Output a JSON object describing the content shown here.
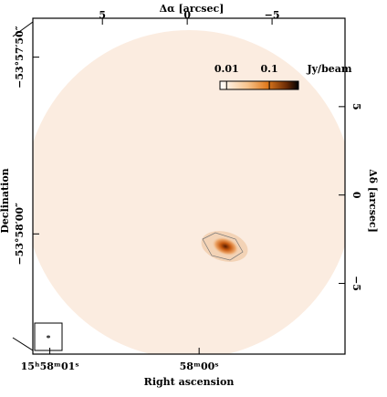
{
  "chart_data": {
    "type": "image",
    "top_axis_label": "Δα [arcsec]",
    "right_axis_label": "Δδ [arcsec]",
    "bottom_axis_label": "Right ascension",
    "left_axis_label": "Declination",
    "xlim": [
      9.1,
      -9.3
    ],
    "ylim": [
      -9.0,
      10.0
    ],
    "xticks": [
      5,
      0,
      {
        "value": -5,
        "label": "−5"
      }
    ],
    "yticks": [
      5,
      0,
      {
        "value": -5,
        "label": "−5"
      }
    ],
    "ra_ticks": [
      {
        "value": 8.1,
        "label": "15ʰ58ᵐ01ˢ"
      },
      {
        "value": -0.7,
        "label": "58ᵐ00ˢ"
      }
    ],
    "dec_ticks": [
      {
        "value": 7.8,
        "label": "−53°57′50″"
      },
      {
        "value": -2.2,
        "label": "−53°58′00″"
      }
    ],
    "colorbar": {
      "lim": [
        0.007,
        0.48
      ],
      "ticks": [
        0.01,
        0.1
      ],
      "unit": "Jy/beam",
      "log": true
    }
  }
}
